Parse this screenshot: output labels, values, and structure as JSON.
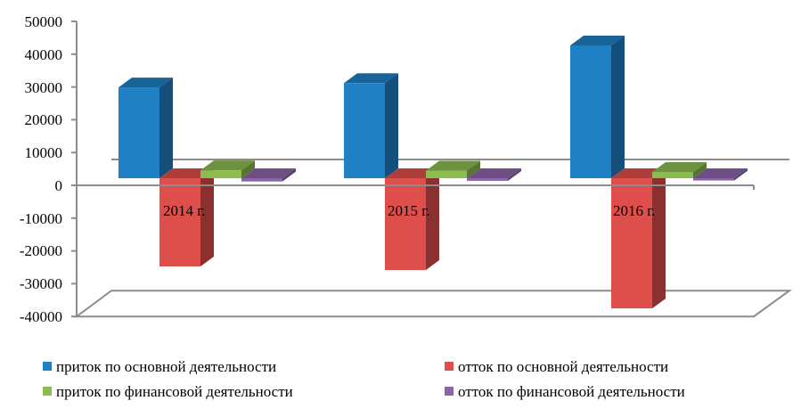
{
  "chart_data": {
    "type": "bar",
    "subtype": "3d-clustered-column",
    "title": "",
    "xlabel": "",
    "ylabel": "",
    "categories": [
      "2014 г.",
      "2015 г.",
      "2016 г."
    ],
    "series": [
      {
        "name": "приток по основной деятельности",
        "color": "#1f80c4",
        "values": [
          27700,
          29000,
          40500
        ]
      },
      {
        "name": "отток по основной деятельности",
        "color": "#de4f4b",
        "values": [
          -26900,
          -28000,
          -39700
        ]
      },
      {
        "name": "приток по финансовой деятельности",
        "color": "#8cbc4f",
        "values": [
          2400,
          2300,
          1900
        ]
      },
      {
        "name": "отток по финансовой деятельности",
        "color": "#8c65a9",
        "values": [
          -1000,
          -800,
          -700
        ]
      }
    ],
    "ylim": [
      -40000,
      50000
    ],
    "yticks": [
      50000,
      40000,
      30000,
      20000,
      10000,
      0,
      -10000,
      -20000,
      -30000,
      -40000
    ],
    "grid": false,
    "legend_position": "bottom"
  },
  "axis": {
    "yticks": [
      "50000",
      "40000",
      "30000",
      "20000",
      "10000",
      "0",
      "-10000",
      "-20000",
      "-30000",
      "-40000"
    ]
  },
  "legend": {
    "items": [
      {
        "label": "приток по основной деятельности",
        "color": "#1f80c4"
      },
      {
        "label": "отток по основной деятельности",
        "color": "#de4f4b"
      },
      {
        "label": "приток по финансовой деятельности",
        "color": "#8cbc4f"
      },
      {
        "label": "отток по финансовой деятельности",
        "color": "#8c65a9"
      }
    ]
  }
}
